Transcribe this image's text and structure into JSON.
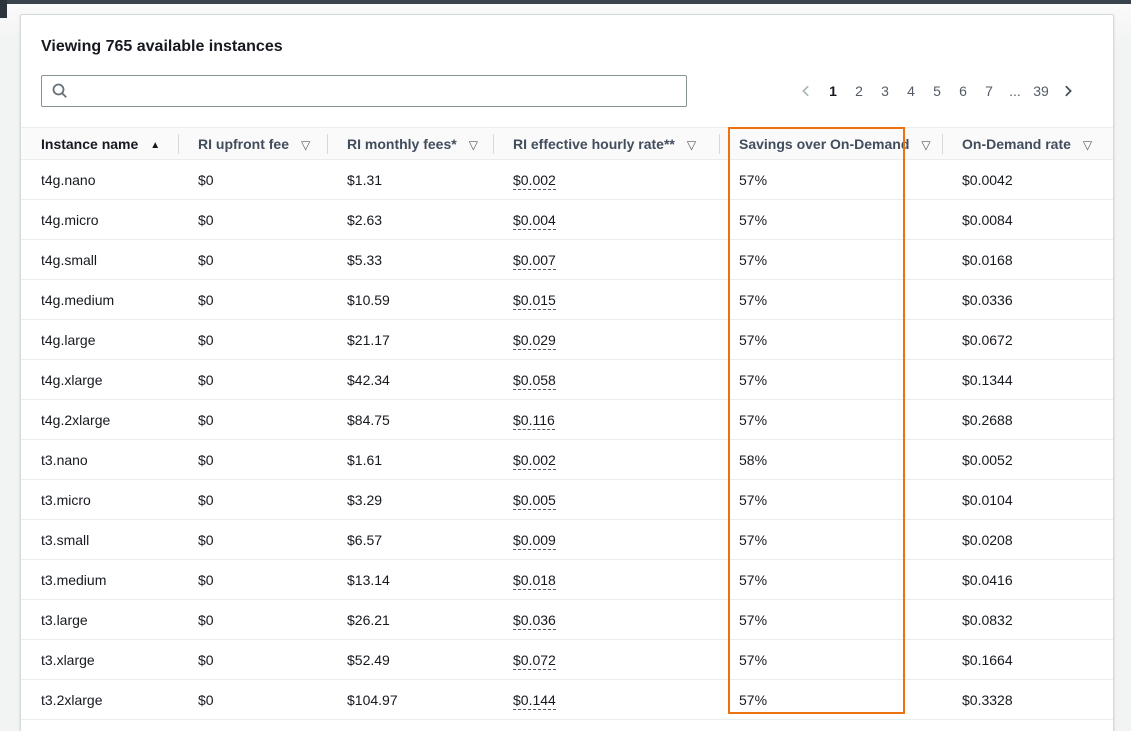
{
  "header": {
    "title": "Viewing 765 available instances"
  },
  "search": {
    "value": "",
    "placeholder": ""
  },
  "pagination": {
    "pages": [
      "1",
      "2",
      "3",
      "4",
      "5",
      "6",
      "7",
      "...",
      "39"
    ],
    "current": "1",
    "prev_enabled": false,
    "next_enabled": true
  },
  "table": {
    "columns": [
      {
        "id": "instance-name",
        "label": "Instance name",
        "sort_icon": "sort-ascending",
        "filter_icon": null,
        "sorted": true,
        "highlighted": false
      },
      {
        "id": "ri-upfront-fee",
        "label": "RI upfront fee",
        "sort_icon": null,
        "filter_icon": "filter-dropdown",
        "sorted": false,
        "highlighted": false
      },
      {
        "id": "ri-monthly-fees",
        "label": "RI monthly fees*",
        "sort_icon": null,
        "filter_icon": "filter-dropdown",
        "sorted": false,
        "highlighted": false
      },
      {
        "id": "ri-effective-hourly-rate",
        "label": "RI effective hourly rate**",
        "sort_icon": null,
        "filter_icon": "filter-dropdown",
        "sorted": false,
        "highlighted": false
      },
      {
        "id": "savings-over-on-demand",
        "label": "Savings over On-Demand",
        "sort_icon": null,
        "filter_icon": "filter-dropdown",
        "sorted": false,
        "highlighted": true
      },
      {
        "id": "on-demand-rate",
        "label": "On-Demand rate",
        "sort_icon": null,
        "filter_icon": "filter-dropdown",
        "sorted": false,
        "highlighted": false
      }
    ],
    "rows": [
      [
        "t4g.nano",
        "$0",
        "$1.31",
        "$0.002",
        "57%",
        "$0.0042"
      ],
      [
        "t4g.micro",
        "$0",
        "$2.63",
        "$0.004",
        "57%",
        "$0.0084"
      ],
      [
        "t4g.small",
        "$0",
        "$5.33",
        "$0.007",
        "57%",
        "$0.0168"
      ],
      [
        "t4g.medium",
        "$0",
        "$10.59",
        "$0.015",
        "57%",
        "$0.0336"
      ],
      [
        "t4g.large",
        "$0",
        "$21.17",
        "$0.029",
        "57%",
        "$0.0672"
      ],
      [
        "t4g.xlarge",
        "$0",
        "$42.34",
        "$0.058",
        "57%",
        "$0.1344"
      ],
      [
        "t4g.2xlarge",
        "$0",
        "$84.75",
        "$0.116",
        "57%",
        "$0.2688"
      ],
      [
        "t3.nano",
        "$0",
        "$1.61",
        "$0.002",
        "58%",
        "$0.0052"
      ],
      [
        "t3.micro",
        "$0",
        "$3.29",
        "$0.005",
        "57%",
        "$0.0104"
      ],
      [
        "t3.small",
        "$0",
        "$6.57",
        "$0.009",
        "57%",
        "$0.0208"
      ],
      [
        "t3.medium",
        "$0",
        "$13.14",
        "$0.018",
        "57%",
        "$0.0416"
      ],
      [
        "t3.large",
        "$0",
        "$26.21",
        "$0.036",
        "57%",
        "$0.0832"
      ],
      [
        "t3.xlarge",
        "$0",
        "$52.49",
        "$0.072",
        "57%",
        "$0.1664"
      ],
      [
        "t3.2xlarge",
        "$0",
        "$104.97",
        "$0.144",
        "57%",
        "$0.3328"
      ]
    ]
  },
  "colors": {
    "highlight_orange": "#ec7211",
    "row_border": "#eaeded",
    "header_text": "#414d5c",
    "body_text": "#16191f"
  },
  "icons": {
    "search": "magnifier",
    "sort_ascending_glyph": "▲",
    "filter_dropdown_glyph": "▽",
    "prev": "chevron-left",
    "next": "chevron-right",
    "ellipsis": "..."
  }
}
